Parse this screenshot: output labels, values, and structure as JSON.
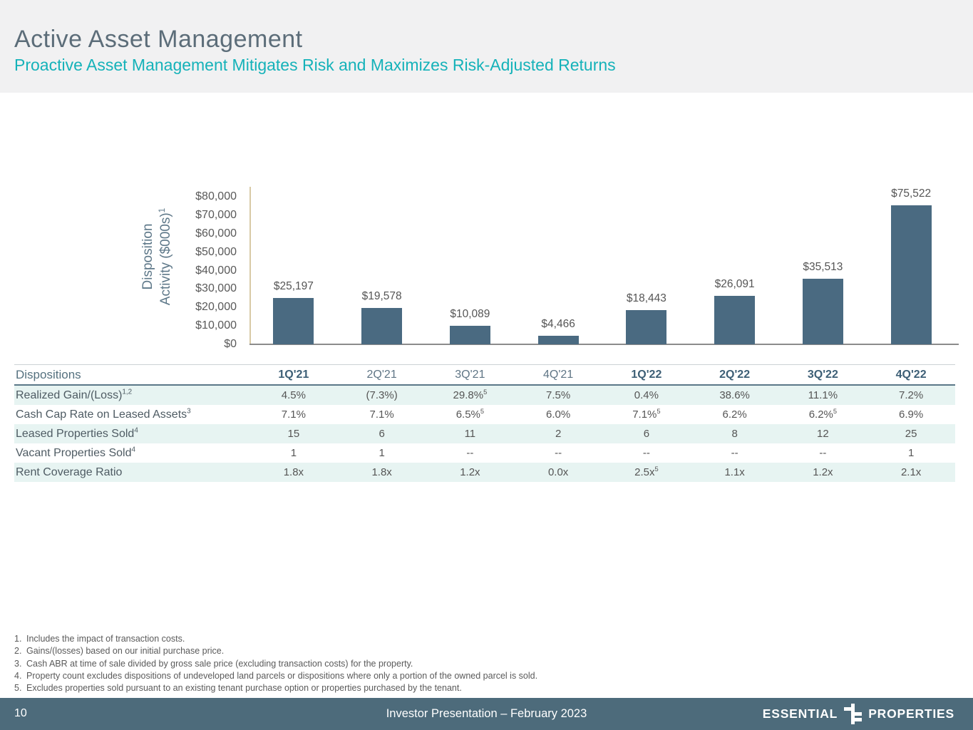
{
  "header": {
    "title": "Active Asset Management",
    "subtitle": "Proactive Asset Management Mitigates Risk and Maximizes Risk-Adjusted Returns"
  },
  "chart_data": {
    "type": "bar",
    "categories": [
      "1Q'21",
      "2Q'21",
      "3Q'21",
      "4Q'21",
      "1Q'22",
      "2Q'22",
      "3Q'22",
      "4Q'22"
    ],
    "values": [
      25197,
      19578,
      10089,
      4466,
      18443,
      26091,
      35513,
      75522
    ],
    "value_labels": [
      "$25,197",
      "$19,578",
      "$10,089",
      "$4,466",
      "$18,443",
      "$26,091",
      "$35,513",
      "$75,522"
    ],
    "title": "",
    "xlabel": "",
    "ylabel": "Disposition\nActivity ($000s)^1^",
    "ylim": [
      0,
      80000
    ],
    "ytick_step": 10000,
    "ytick_labels": [
      "$0",
      "$10,000",
      "$20,000",
      "$30,000",
      "$40,000",
      "$50,000",
      "$60,000",
      "$70,000",
      "$80,000"
    ],
    "grid": "off",
    "legend": "none",
    "bar_color": "#4a6a81"
  },
  "table": {
    "title": "Dispositions",
    "columns": [
      {
        "label": "1Q'21",
        "bold": true
      },
      {
        "label": "2Q'21",
        "bold": false
      },
      {
        "label": "3Q'21",
        "bold": false
      },
      {
        "label": "4Q'21",
        "bold": false
      },
      {
        "label": "1Q'22",
        "bold": true
      },
      {
        "label": "2Q'22",
        "bold": true
      },
      {
        "label": "3Q'22",
        "bold": true
      },
      {
        "label": "4Q'22",
        "bold": true
      }
    ],
    "rows": [
      {
        "label": "Realized Gain/(Loss)^1,2^",
        "shaded": true,
        "values": [
          "4.5%",
          "(7.3%)",
          "29.8%^5^",
          "7.5%",
          "0.4%",
          "38.6%",
          "11.1%",
          "7.2%"
        ]
      },
      {
        "label": "Cash Cap Rate on Leased Assets^3^",
        "shaded": false,
        "values": [
          "7.1%",
          "7.1%",
          "6.5%^5^",
          "6.0%",
          "7.1%^5^",
          "6.2%",
          "6.2%^5^",
          "6.9%"
        ]
      },
      {
        "label": "Leased Properties Sold^4^",
        "shaded": true,
        "values": [
          "15",
          "6",
          "11",
          "2",
          "6",
          "8",
          "12",
          "25"
        ]
      },
      {
        "label": "Vacant Properties Sold^4^",
        "shaded": false,
        "values": [
          "1",
          "1",
          "--",
          "--",
          "--",
          "--",
          "--",
          "1"
        ]
      },
      {
        "label": "Rent Coverage Ratio",
        "shaded": true,
        "values": [
          "1.8x",
          "1.8x",
          "1.2x",
          "0.0x",
          "2.5x^5^",
          "1.1x",
          "1.2x",
          "2.1x"
        ]
      }
    ]
  },
  "footnotes": [
    {
      "num": "1.",
      "text": "Includes the impact of transaction costs."
    },
    {
      "num": "2.",
      "text": "Gains/(losses) based on our initial purchase price."
    },
    {
      "num": "3.",
      "text": "Cash ABR at time of sale divided by gross sale price (excluding transaction costs) for the property."
    },
    {
      "num": "4.",
      "text": "Property count excludes dispositions of undeveloped land parcels or dispositions where only a portion of the owned parcel is sold."
    },
    {
      "num": "5.",
      "text": "Excludes properties sold pursuant to an existing tenant purchase option or properties purchased by the tenant."
    }
  ],
  "footer": {
    "page_number": "10",
    "center_text": "Investor Presentation – February 2023",
    "logo_left": "ESSENTIAL",
    "logo_right": "PROPERTIES"
  },
  "colors": {
    "accent_teal": "#15b2b9",
    "title_slate": "#5c6d79",
    "bar_fill": "#4a6a81",
    "footer_bg": "#4d6b7b",
    "row_shade": "#e7f4f2",
    "y_axis_line_tan": "#d8caa6",
    "x_axis_line_gray": "#8c8c8c"
  }
}
